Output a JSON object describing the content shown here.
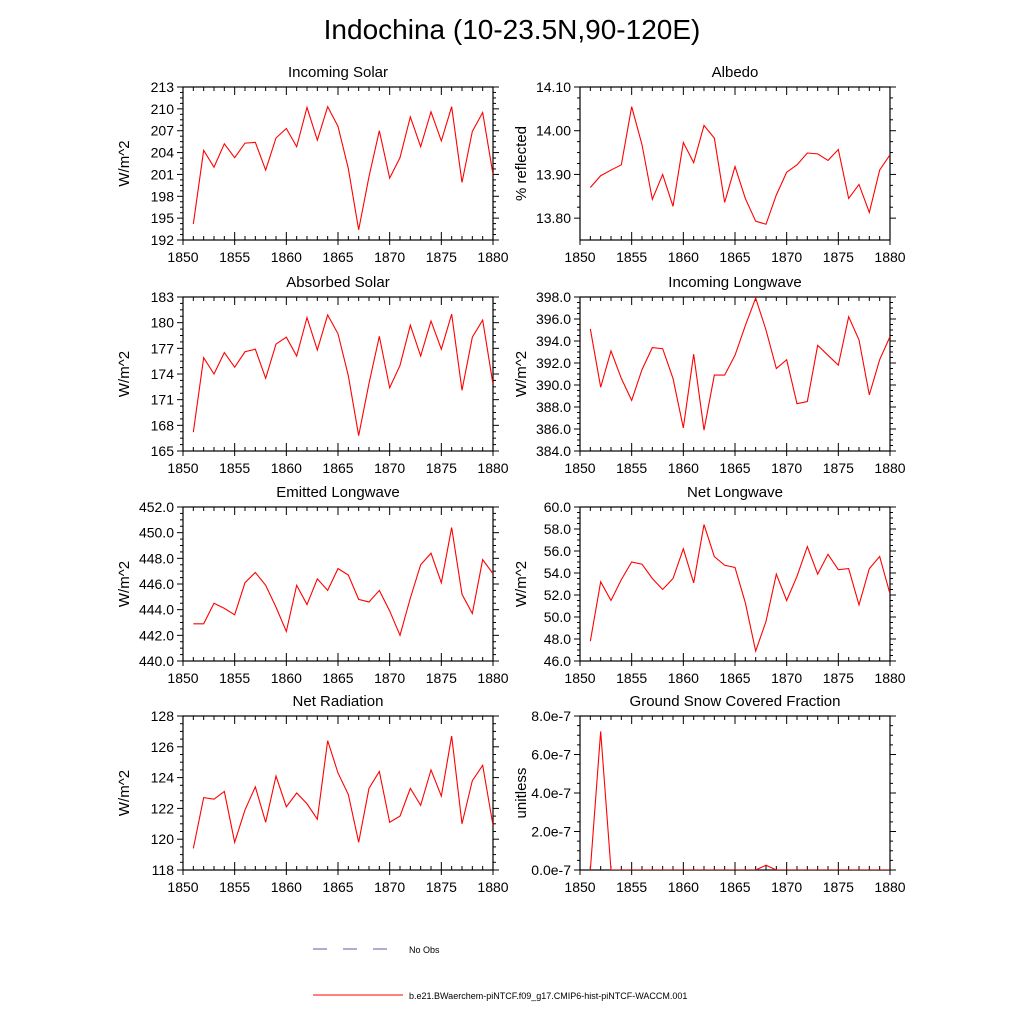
{
  "figure": {
    "title": "Indochina (10-23.5N,90-120E)"
  },
  "chart_data": [
    {
      "type": "line",
      "title": "Incoming Solar",
      "ylabel": "W/m^2",
      "xlim": [
        1850,
        1880
      ],
      "ylim": [
        192,
        213
      ],
      "xticks": [
        "1850",
        "1855",
        "1860",
        "1865",
        "1870",
        "1875",
        "1880"
      ],
      "yticks": [
        "192",
        "195",
        "198",
        "201",
        "204",
        "207",
        "210",
        "213"
      ],
      "x": [
        1851,
        1852,
        1853,
        1854,
        1855,
        1856,
        1857,
        1858,
        1859,
        1860,
        1861,
        1862,
        1863,
        1864,
        1865,
        1866,
        1867,
        1868,
        1869,
        1870,
        1871,
        1872,
        1873,
        1874,
        1875,
        1876,
        1877,
        1878,
        1879,
        1880
      ],
      "series": [
        {
          "values": [
            194.2,
            204.3,
            202.0,
            205.2,
            203.3,
            205.3,
            205.4,
            201.6,
            206.0,
            207.3,
            204.8,
            210.2,
            205.7,
            210.3,
            207.6,
            201.8,
            193.4,
            200.7,
            207.0,
            200.5,
            203.3,
            208.9,
            204.8,
            209.6,
            205.6,
            210.3,
            199.9,
            206.9,
            209.5,
            201.0
          ]
        }
      ]
    },
    {
      "type": "line",
      "title": "Albedo",
      "ylabel": "% reflected",
      "xlim": [
        1850,
        1880
      ],
      "ylim": [
        13.75,
        14.1
      ],
      "xticks": [
        "1850",
        "1855",
        "1860",
        "1865",
        "1870",
        "1875",
        "1880"
      ],
      "yticks": [
        "13.80",
        "13.90",
        "14.00",
        "14.10"
      ],
      "x": [
        1851,
        1852,
        1853,
        1854,
        1855,
        1856,
        1857,
        1858,
        1859,
        1860,
        1861,
        1862,
        1863,
        1864,
        1865,
        1866,
        1867,
        1868,
        1869,
        1870,
        1871,
        1872,
        1873,
        1874,
        1875,
        1876,
        1877,
        1878,
        1879,
        1880
      ],
      "series": [
        {
          "values": [
            13.87,
            13.897,
            13.91,
            13.922,
            14.055,
            13.968,
            13.843,
            13.9,
            13.827,
            13.973,
            13.927,
            14.012,
            13.983,
            13.836,
            13.918,
            13.845,
            13.793,
            13.786,
            13.853,
            13.905,
            13.922,
            13.949,
            13.947,
            13.932,
            13.957,
            13.845,
            13.877,
            13.813,
            13.91,
            13.945
          ]
        }
      ]
    },
    {
      "type": "line",
      "title": "Absorbed Solar",
      "ylabel": "W/m^2",
      "xlim": [
        1850,
        1880
      ],
      "ylim": [
        165,
        183
      ],
      "xticks": [
        "1850",
        "1855",
        "1860",
        "1865",
        "1870",
        "1875",
        "1880"
      ],
      "yticks": [
        "165",
        "168",
        "171",
        "174",
        "177",
        "180",
        "183"
      ],
      "x": [
        1851,
        1852,
        1853,
        1854,
        1855,
        1856,
        1857,
        1858,
        1859,
        1860,
        1861,
        1862,
        1863,
        1864,
        1865,
        1866,
        1867,
        1868,
        1869,
        1870,
        1871,
        1872,
        1873,
        1874,
        1875,
        1876,
        1877,
        1878,
        1879,
        1880
      ],
      "series": [
        {
          "values": [
            167.2,
            175.9,
            174.0,
            176.5,
            174.8,
            176.6,
            176.9,
            173.5,
            177.5,
            178.3,
            176.1,
            180.6,
            176.8,
            180.9,
            178.7,
            173.8,
            166.8,
            172.9,
            178.4,
            172.4,
            175.0,
            179.7,
            176.1,
            180.2,
            176.9,
            181.0,
            172.1,
            178.3,
            180.3,
            172.8
          ]
        }
      ]
    },
    {
      "type": "line",
      "title": "Incoming Longwave",
      "ylabel": "W/m^2",
      "xlim": [
        1850,
        1880
      ],
      "ylim": [
        384.0,
        398.0
      ],
      "xticks": [
        "1850",
        "1855",
        "1860",
        "1865",
        "1870",
        "1875",
        "1880"
      ],
      "yticks": [
        "384.0",
        "386.0",
        "388.0",
        "390.0",
        "392.0",
        "394.0",
        "396.0",
        "398.0"
      ],
      "x": [
        1851,
        1852,
        1853,
        1854,
        1855,
        1856,
        1857,
        1858,
        1859,
        1860,
        1861,
        1862,
        1863,
        1864,
        1865,
        1866,
        1867,
        1868,
        1869,
        1870,
        1871,
        1872,
        1873,
        1874,
        1875,
        1876,
        1877,
        1878,
        1879,
        1880
      ],
      "series": [
        {
          "values": [
            395.1,
            389.8,
            393.1,
            390.6,
            388.6,
            391.4,
            393.4,
            393.3,
            390.6,
            386.1,
            392.8,
            385.9,
            390.9,
            390.9,
            392.7,
            395.4,
            397.9,
            395.0,
            391.5,
            392.3,
            388.3,
            388.5,
            393.6,
            392.7,
            391.8,
            396.2,
            394.1,
            389.1,
            392.3,
            394.4
          ]
        }
      ]
    },
    {
      "type": "line",
      "title": "Emitted Longwave",
      "ylabel": "W/m^2",
      "xlim": [
        1850,
        1880
      ],
      "ylim": [
        440.0,
        452.0
      ],
      "xticks": [
        "1850",
        "1855",
        "1860",
        "1865",
        "1870",
        "1875",
        "1880"
      ],
      "yticks": [
        "440.0",
        "442.0",
        "444.0",
        "446.0",
        "448.0",
        "450.0",
        "452.0"
      ],
      "x": [
        1851,
        1852,
        1853,
        1854,
        1855,
        1856,
        1857,
        1858,
        1859,
        1860,
        1861,
        1862,
        1863,
        1864,
        1865,
        1866,
        1867,
        1868,
        1869,
        1870,
        1871,
        1872,
        1873,
        1874,
        1875,
        1876,
        1877,
        1878,
        1879,
        1880
      ],
      "series": [
        {
          "values": [
            442.9,
            442.9,
            444.5,
            444.1,
            443.6,
            446.1,
            446.9,
            445.9,
            444.2,
            442.3,
            445.9,
            444.4,
            446.4,
            445.5,
            447.2,
            446.7,
            444.8,
            444.6,
            445.5,
            443.9,
            442.0,
            444.9,
            447.5,
            448.4,
            446.1,
            450.4,
            445.2,
            443.7,
            447.9,
            446.8
          ]
        }
      ]
    },
    {
      "type": "line",
      "title": "Net Longwave",
      "ylabel": "W/m^2",
      "xlim": [
        1850,
        1880
      ],
      "ylim": [
        46.0,
        60.0
      ],
      "xticks": [
        "1850",
        "1855",
        "1860",
        "1865",
        "1870",
        "1875",
        "1880"
      ],
      "yticks": [
        "46.0",
        "48.0",
        "50.0",
        "52.0",
        "54.0",
        "56.0",
        "58.0",
        "60.0"
      ],
      "x": [
        1851,
        1852,
        1853,
        1854,
        1855,
        1856,
        1857,
        1858,
        1859,
        1860,
        1861,
        1862,
        1863,
        1864,
        1865,
        1866,
        1867,
        1868,
        1869,
        1870,
        1871,
        1872,
        1873,
        1874,
        1875,
        1876,
        1877,
        1878,
        1879,
        1880
      ],
      "series": [
        {
          "values": [
            47.8,
            53.2,
            51.5,
            53.4,
            55.0,
            54.8,
            53.5,
            52.5,
            53.5,
            56.2,
            53.1,
            58.4,
            55.5,
            54.7,
            54.5,
            51.3,
            46.9,
            49.6,
            53.9,
            51.5,
            53.7,
            56.4,
            53.9,
            55.7,
            54.3,
            54.4,
            51.1,
            54.4,
            55.5,
            52.1
          ]
        }
      ]
    },
    {
      "type": "line",
      "title": "Net Radiation",
      "ylabel": "W/m^2",
      "xlim": [
        1850,
        1880
      ],
      "ylim": [
        118,
        128
      ],
      "xticks": [
        "1850",
        "1855",
        "1860",
        "1865",
        "1870",
        "1875",
        "1880"
      ],
      "yticks": [
        "118",
        "120",
        "122",
        "124",
        "126",
        "128"
      ],
      "x": [
        1851,
        1852,
        1853,
        1854,
        1855,
        1856,
        1857,
        1858,
        1859,
        1860,
        1861,
        1862,
        1863,
        1864,
        1865,
        1866,
        1867,
        1868,
        1869,
        1870,
        1871,
        1872,
        1873,
        1874,
        1875,
        1876,
        1877,
        1878,
        1879,
        1880
      ],
      "series": [
        {
          "values": [
            119.4,
            122.7,
            122.6,
            123.1,
            119.8,
            121.9,
            123.4,
            121.1,
            124.1,
            122.1,
            123.0,
            122.3,
            121.3,
            126.4,
            124.3,
            122.9,
            119.8,
            123.3,
            124.4,
            121.1,
            121.5,
            123.3,
            122.2,
            124.5,
            122.8,
            126.7,
            121.0,
            123.8,
            124.8,
            120.9
          ]
        }
      ]
    },
    {
      "type": "line",
      "title": "Ground Snow Covered Fraction",
      "ylabel": "unitless",
      "xlim": [
        1850,
        1880
      ],
      "ylim": [
        0,
        8e-07
      ],
      "xticks": [
        "1850",
        "1855",
        "1860",
        "1865",
        "1870",
        "1875",
        "1880"
      ],
      "yticks": [
        "0.0e-7",
        "2.0e-7",
        "4.0e-7",
        "6.0e-7",
        "8.0e-7"
      ],
      "x": [
        1851,
        1852,
        1853,
        1854,
        1855,
        1856,
        1857,
        1858,
        1859,
        1860,
        1861,
        1862,
        1863,
        1864,
        1865,
        1866,
        1867,
        1868,
        1869,
        1870,
        1871,
        1872,
        1873,
        1874,
        1875,
        1876,
        1877,
        1878,
        1879,
        1880
      ],
      "series": [
        {
          "values": [
            0,
            7.2e-07,
            0,
            0,
            0,
            0,
            0,
            0,
            0,
            0,
            0,
            0,
            0,
            0,
            0,
            0,
            0,
            2.5e-08,
            0,
            0,
            0,
            0,
            0,
            0,
            0,
            0,
            0,
            0,
            0,
            0
          ]
        }
      ]
    }
  ],
  "legend": {
    "items": [
      {
        "label": "No Obs",
        "color": "#5a5aaa",
        "style": "dashed"
      },
      {
        "label": "b.e21.BWaerchem-piNTCF.f09_g17.CMIP6-hist-piNTCF-WACCM.001",
        "color": "#ff0000",
        "style": "solid"
      }
    ]
  },
  "colors": {
    "series_line": "#ff0000",
    "axis": "#000000"
  }
}
